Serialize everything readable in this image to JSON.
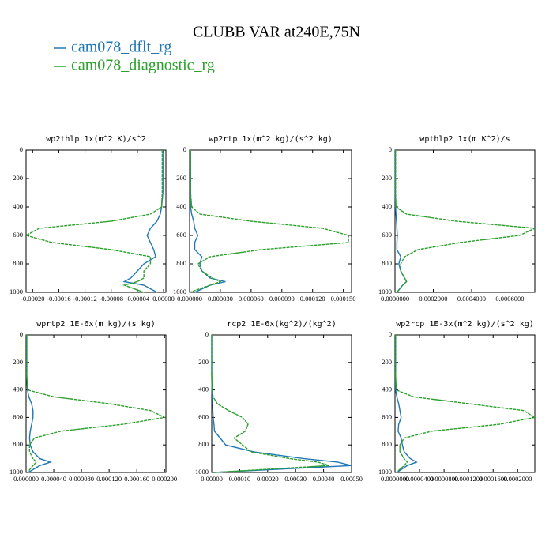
{
  "title": "CLUBB VAR at240E,75N",
  "legend": [
    {
      "name": "cam078_dflt_rg",
      "color": "#1f77b4"
    },
    {
      "name": "cam078_diagnostic_rg",
      "color": "#2ca02c"
    }
  ],
  "chart_data": [
    {
      "type": "line",
      "title": "wp2thlp   1x(m^2 K)/s^2",
      "y": [
        0,
        100,
        200,
        300,
        400,
        450,
        500,
        550,
        600,
        650,
        700,
        750,
        800,
        850,
        900,
        925,
        950,
        1000
      ],
      "ylim": [
        1000,
        0
      ],
      "yticks": [
        0,
        200,
        400,
        600,
        800,
        1000
      ],
      "xlim": [
        -0.00021,
        3.6e-06
      ],
      "xticks": [
        {
          "value": -0.0002,
          "label": "-0.00020"
        },
        {
          "value": -0.00016,
          "label": "-0.00016"
        },
        {
          "value": -0.00012,
          "label": "-0.00012"
        },
        {
          "value": -8e-05,
          "label": "-0.00008"
        },
        {
          "value": -4e-05,
          "label": "-0.00004"
        },
        {
          "value": 0,
          "label": "0.00000"
        }
      ],
      "series": [
        {
          "values": [
            -1e-06,
            -1e-06,
            -1e-06,
            -1e-06,
            -3e-06,
            -5e-06,
            -1e-05,
            -2e-05,
            -2.5e-05,
            -2e-05,
            -1.5e-05,
            -1.2e-05,
            -3e-05,
            -4e-05,
            -5e-05,
            -6e-05,
            -3e-05,
            -1e-05
          ]
        },
        {
          "values": [
            -2e-06,
            -2e-06,
            -2e-06,
            -2e-06,
            -3e-06,
            -2e-05,
            -8e-05,
            -0.00019,
            -0.00021,
            -0.00017,
            -8e-05,
            -2e-05,
            -2e-05,
            -3e-05,
            -3e-05,
            -4e-05,
            -6e-05,
            -3e-05
          ]
        }
      ]
    },
    {
      "type": "line",
      "title": "wp2rtp   1x(m^2 kg)/(s^2 kg)",
      "y": [
        0,
        100,
        200,
        300,
        400,
        450,
        500,
        550,
        600,
        650,
        700,
        750,
        800,
        850,
        900,
        925,
        950,
        1000
      ],
      "ylim": [
        1000,
        0
      ],
      "yticks": [
        0,
        200,
        400,
        600,
        800,
        1000
      ],
      "xlim": [
        0,
        0.000158
      ],
      "xticks": [
        {
          "value": 0,
          "label": "0.000000"
        },
        {
          "value": 3e-05,
          "label": "0.000030"
        },
        {
          "value": 6e-05,
          "label": "0.000060"
        },
        {
          "value": 9e-05,
          "label": "0.000090"
        },
        {
          "value": 0.00012,
          "label": "0.000120"
        },
        {
          "value": 0.00015,
          "label": "0.000150"
        }
      ],
      "series": [
        {
          "values": [
            1e-06,
            1e-06,
            1e-06,
            1e-06,
            1e-06,
            2e-06,
            4e-06,
            5e-06,
            8e-06,
            5e-06,
            5e-06,
            1.2e-05,
            1e-05,
            1.2e-05,
            2e-05,
            3.5e-05,
            2e-05,
            5e-06
          ]
        },
        {
          "values": [
            1e-06,
            1e-06,
            1e-06,
            1e-06,
            2e-06,
            1e-05,
            6e-05,
            0.00013,
            0.000155,
            0.000155,
            7e-05,
            2e-05,
            8e-06,
            1.2e-05,
            2.2e-05,
            3e-05,
            2e-05,
            0
          ]
        }
      ]
    },
    {
      "type": "line",
      "title": "wpthlp2   1x(m K^2)/s",
      "y": [
        0,
        100,
        200,
        300,
        400,
        450,
        500,
        550,
        600,
        650,
        700,
        750,
        800,
        850,
        900,
        925,
        950,
        1000
      ],
      "ylim": [
        1000,
        0
      ],
      "yticks": [
        0,
        200,
        400,
        600,
        800,
        1000
      ],
      "xlim": [
        0,
        0.00073
      ],
      "xticks": [
        {
          "value": 0,
          "label": "0.0000000"
        },
        {
          "value": 0.0002,
          "label": "0.0002000"
        },
        {
          "value": 0.0004,
          "label": "0.0004000"
        },
        {
          "value": 0.0006,
          "label": "0.0006000"
        }
      ],
      "series": [
        {
          "values": [
            2e-06,
            2e-06,
            2e-06,
            2e-06,
            3e-06,
            5e-06,
            8e-06,
            1e-05,
            1.2e-05,
            1e-05,
            1e-05,
            3e-05,
            2e-05,
            3e-05,
            5e-05,
            6e-05,
            4e-05,
            1e-05
          ]
        },
        {
          "values": [
            3e-06,
            3e-06,
            3e-06,
            3e-06,
            5e-06,
            6e-05,
            0.00032,
            0.00073,
            0.00065,
            0.00034,
            0.00012,
            5e-05,
            3e-05,
            3e-05,
            5e-05,
            6e-05,
            4e-05,
            1e-05
          ]
        }
      ]
    },
    {
      "type": "line",
      "title": "wprtp2   1E-6x(m kg)/(s kg)",
      "y": [
        0,
        100,
        200,
        300,
        400,
        450,
        500,
        550,
        600,
        650,
        700,
        750,
        800,
        850,
        900,
        925,
        950,
        1000
      ],
      "ylim": [
        1000,
        0
      ],
      "yticks": [
        0,
        200,
        400,
        600,
        800,
        1000
      ],
      "xlim": [
        0,
        0.000202
      ],
      "xticks": [
        {
          "value": 0,
          "label": "0.000000"
        },
        {
          "value": 4e-05,
          "label": "0.000040"
        },
        {
          "value": 8e-05,
          "label": "0.000080"
        },
        {
          "value": 0.00012,
          "label": "0.000120"
        },
        {
          "value": 0.00016,
          "label": "0.000160"
        },
        {
          "value": 0.0002,
          "label": "0.000200"
        }
      ],
      "series": [
        {
          "values": [
            1e-06,
            1e-06,
            1e-06,
            1e-06,
            2e-06,
            4e-06,
            8e-06,
            1e-05,
            1e-05,
            8e-06,
            6e-06,
            5e-06,
            6e-06,
            1e-05,
            2e-05,
            3.5e-05,
            2e-05,
            3e-06
          ]
        },
        {
          "values": [
            1e-06,
            1e-06,
            1e-06,
            1e-06,
            2e-06,
            4e-05,
            0.00012,
            0.00018,
            0.0002,
            0.00014,
            5e-05,
            1.2e-05,
            5e-06,
            5e-06,
            1e-05,
            1.5e-05,
            1e-05,
            2e-06
          ]
        }
      ]
    },
    {
      "type": "line",
      "title": "rcp2   1E-6x(kg^2)/(kg^2)",
      "y": [
        0,
        100,
        200,
        300,
        400,
        450,
        500,
        550,
        600,
        650,
        700,
        750,
        800,
        850,
        900,
        925,
        950,
        1000
      ],
      "ylim": [
        1000,
        0
      ],
      "yticks": [
        0,
        200,
        400,
        600,
        800,
        1000
      ],
      "xlim": [
        0,
        0.0005
      ],
      "xticks": [
        {
          "value": 0,
          "label": "0.00000"
        },
        {
          "value": 0.0001,
          "label": "0.00010"
        },
        {
          "value": 0.0002,
          "label": "0.00020"
        },
        {
          "value": 0.0003,
          "label": "0.00030"
        },
        {
          "value": 0.0004,
          "label": "0.00040"
        },
        {
          "value": 0.0005,
          "label": "0.00050"
        }
      ],
      "series": [
        {
          "values": [
            0,
            0,
            0,
            0,
            1e-06,
            2e-06,
            3e-06,
            4e-06,
            5e-06,
            8e-06,
            1e-05,
            3e-05,
            5e-05,
            0.00015,
            0.00033,
            0.00045,
            0.0005,
            1e-05
          ]
        },
        {
          "values": [
            0,
            0,
            0,
            0,
            2e-06,
            5e-06,
            2e-05,
            6e-05,
            0.00011,
            0.00013,
            0.00012,
            8e-05,
            0.00011,
            0.00014,
            0.00028,
            0.00038,
            0.00042,
            1e-05
          ]
        }
      ]
    },
    {
      "type": "line",
      "title": "wp2rcp   1E-3x(m^2 kg)/(s^2 kg)",
      "y": [
        0,
        100,
        200,
        300,
        400,
        450,
        500,
        550,
        600,
        650,
        700,
        750,
        800,
        850,
        900,
        925,
        950,
        1000
      ],
      "ylim": [
        1000,
        0
      ],
      "yticks": [
        0,
        200,
        400,
        600,
        800,
        1000
      ],
      "xlim": [
        0,
        0.000228
      ],
      "xticks": [
        {
          "value": 0,
          "label": "0.0000000"
        },
        {
          "value": 4e-05,
          "label": "0.0000400"
        },
        {
          "value": 8e-05,
          "label": "0.0000800"
        },
        {
          "value": 0.00012,
          "label": "0.0001200"
        },
        {
          "value": 0.00016,
          "label": "0.0001600"
        },
        {
          "value": 0.0002,
          "label": "0.0002000"
        }
      ],
      "series": [
        {
          "values": [
            1e-06,
            1e-06,
            1e-06,
            1e-06,
            1e-06,
            3e-06,
            6e-06,
            8e-06,
            1e-05,
            6e-06,
            5e-06,
            1e-05,
            1.2e-05,
            1.5e-05,
            2.5e-05,
            3.5e-05,
            2e-05,
            3e-06
          ]
        },
        {
          "values": [
            1e-06,
            1e-06,
            1e-06,
            1e-06,
            2e-06,
            3e-05,
            0.00012,
            0.00021,
            0.000228,
            0.00017,
            6e-05,
            1.5e-05,
            8e-06,
            8e-06,
            1.5e-05,
            2e-05,
            1.5e-05,
            2e-06
          ]
        }
      ]
    }
  ]
}
